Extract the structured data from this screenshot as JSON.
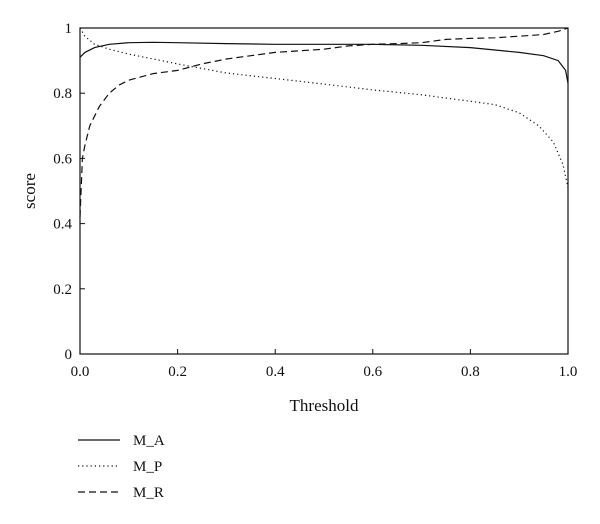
{
  "chart_data": {
    "type": "line",
    "xlabel": "Threshold",
    "ylabel": "score",
    "xlim": [
      0,
      1
    ],
    "ylim": [
      0,
      1
    ],
    "x_ticks": [
      "0.0",
      "0.2",
      "0.4",
      "0.6",
      "0.8",
      "1.0"
    ],
    "y_ticks": [
      "0",
      "0.2",
      "0.4",
      "0.6",
      "0.8",
      "1"
    ],
    "grid": false,
    "legend_placement": "bottom-left",
    "series": [
      {
        "name": "M_A",
        "dash": "solid",
        "x": [
          0,
          0.01,
          0.03,
          0.06,
          0.1,
          0.15,
          0.2,
          0.3,
          0.4,
          0.5,
          0.6,
          0.7,
          0.8,
          0.9,
          0.95,
          0.98,
          0.995,
          1.0
        ],
        "y": [
          0.91,
          0.925,
          0.94,
          0.95,
          0.955,
          0.956,
          0.955,
          0.952,
          0.95,
          0.95,
          0.95,
          0.947,
          0.94,
          0.925,
          0.915,
          0.9,
          0.87,
          0.83
        ]
      },
      {
        "name": "M_P",
        "dash": "dotted",
        "x": [
          0,
          0.01,
          0.03,
          0.06,
          0.1,
          0.15,
          0.2,
          0.3,
          0.4,
          0.5,
          0.6,
          0.7,
          0.8,
          0.85,
          0.9,
          0.94,
          0.97,
          0.99,
          1.0
        ],
        "y": [
          1.0,
          0.975,
          0.95,
          0.935,
          0.92,
          0.905,
          0.89,
          0.862,
          0.845,
          0.828,
          0.81,
          0.795,
          0.775,
          0.765,
          0.74,
          0.7,
          0.65,
          0.58,
          0.51
        ]
      },
      {
        "name": "M_R",
        "dash": "dashed",
        "x": [
          0,
          0.005,
          0.01,
          0.02,
          0.04,
          0.06,
          0.08,
          0.1,
          0.15,
          0.2,
          0.25,
          0.3,
          0.35,
          0.4,
          0.45,
          0.5,
          0.55,
          0.6,
          0.65,
          0.7,
          0.75,
          0.8,
          0.85,
          0.9,
          0.95,
          0.98,
          1.0
        ],
        "y": [
          0.42,
          0.6,
          0.64,
          0.7,
          0.76,
          0.8,
          0.825,
          0.84,
          0.86,
          0.87,
          0.89,
          0.905,
          0.915,
          0.925,
          0.93,
          0.935,
          0.945,
          0.95,
          0.952,
          0.955,
          0.965,
          0.968,
          0.97,
          0.975,
          0.98,
          0.99,
          1.0
        ]
      }
    ]
  }
}
